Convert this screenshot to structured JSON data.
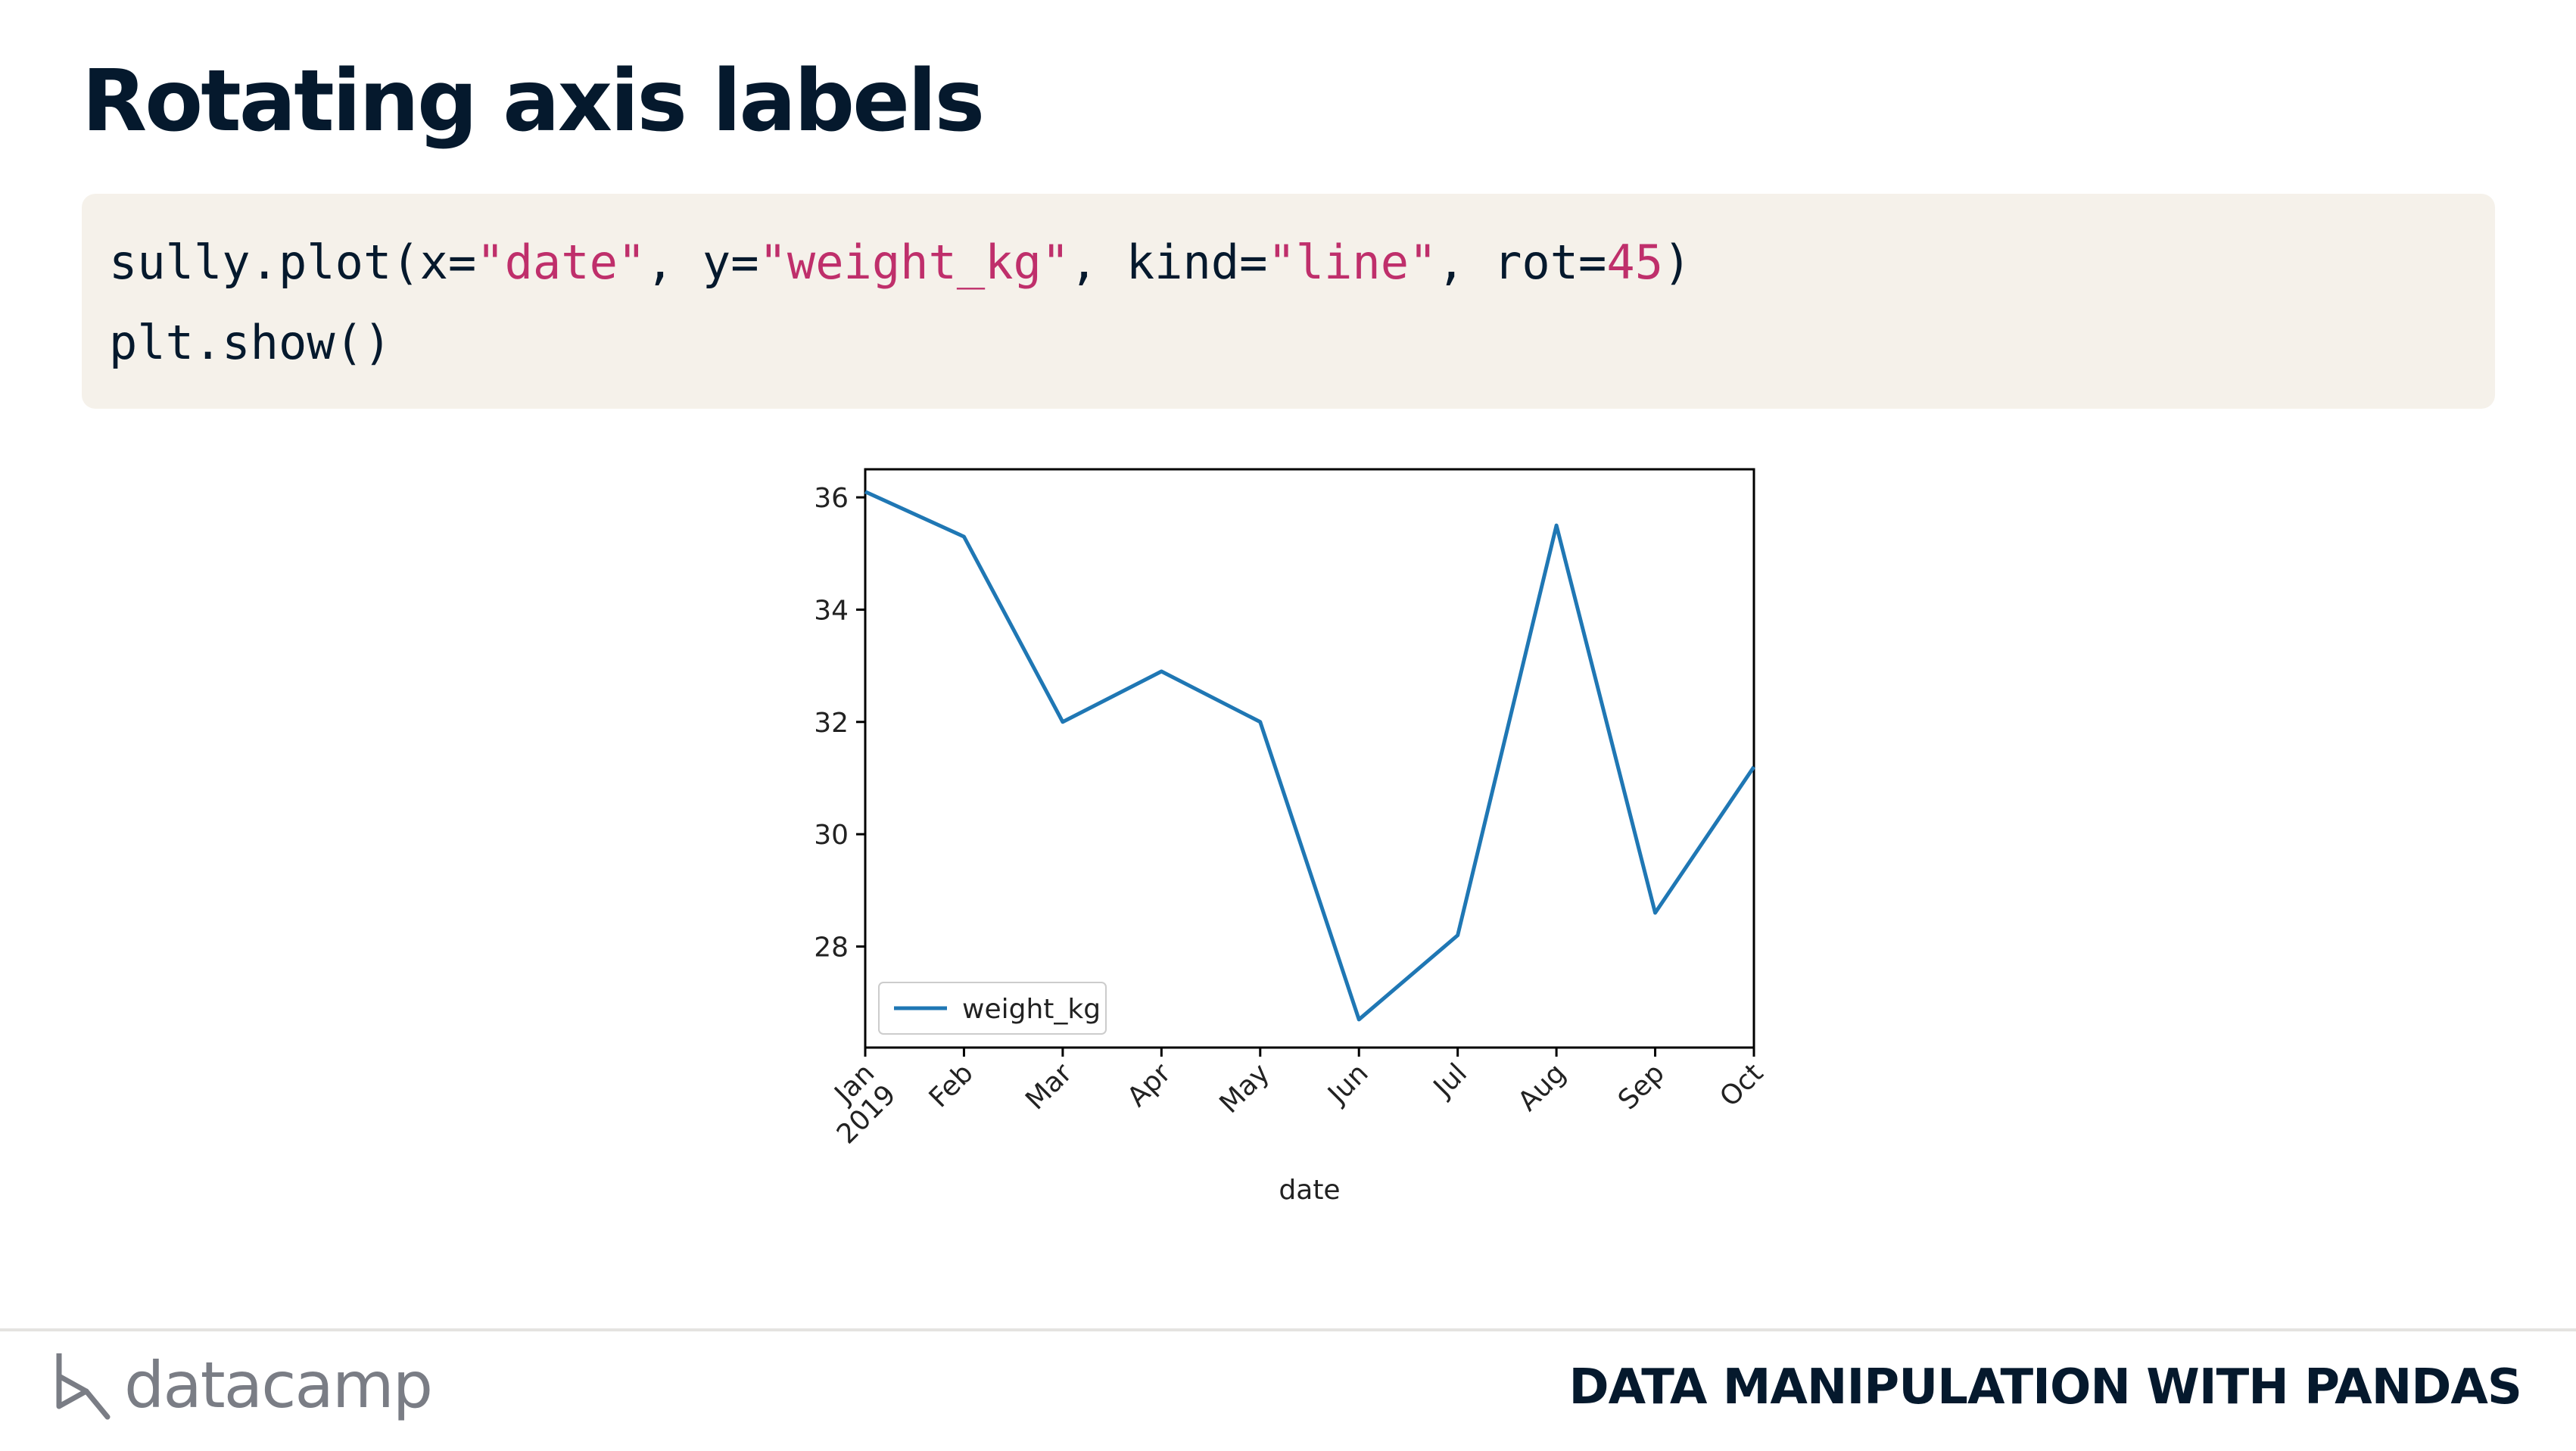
{
  "slide": {
    "title": "Rotating axis labels"
  },
  "code": {
    "line1": {
      "p1": "sully.plot(x=",
      "s1": "\"date\"",
      "p2": ", y=",
      "s2": "\"weight_kg\"",
      "p3": ", kind=",
      "s3": "\"line\"",
      "p4": ", rot=",
      "n1": "45",
      "p5": ")"
    },
    "line2": "plt.show()"
  },
  "chart_data": {
    "type": "line",
    "xlabel": "date",
    "ylabel": "",
    "x_tick_labels": [
      "Jan\n2019",
      "Feb",
      "Mar",
      "Apr",
      "May",
      "Jun",
      "Jul",
      "Aug",
      "Sep",
      "Oct"
    ],
    "x_tick_rotation": 45,
    "y_ticks": [
      28,
      30,
      32,
      34,
      36
    ],
    "ylim": [
      26.2,
      36.5
    ],
    "series": [
      {
        "name": "weight_kg",
        "color": "#1f77b4",
        "values": [
          36.1,
          35.3,
          32.0,
          32.9,
          32.0,
          26.7,
          28.2,
          35.5,
          28.6,
          31.2
        ]
      }
    ],
    "legend_position": "lower-left",
    "grid": false
  },
  "footer": {
    "logo_text": "datacamp",
    "course": "DATA MANIPULATION WITH PANDAS"
  },
  "colors": {
    "title": "#05192d",
    "code_bg": "#f5f1ea",
    "string": "#bf2f6b",
    "logo": "#7a7d85"
  }
}
